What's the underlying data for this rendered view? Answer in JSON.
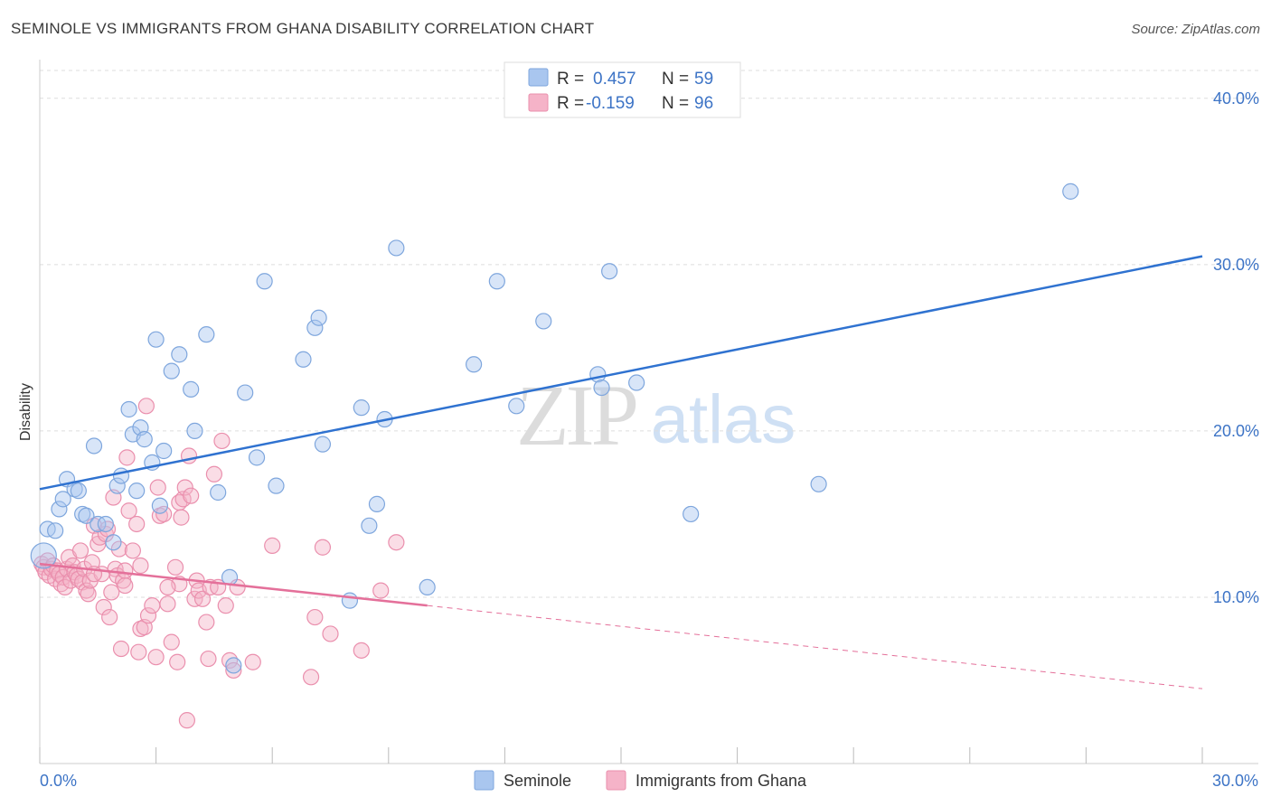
{
  "header": {
    "title": "SEMINOLE VS IMMIGRANTS FROM GHANA DISABILITY CORRELATION CHART",
    "source": "Source: ZipAtlas.com"
  },
  "watermark": {
    "zip": "ZIP",
    "atlas": "atlas"
  },
  "legend_top": {
    "rows": [
      {
        "r_label": "R =",
        "r_value": "0.457",
        "n_label": "N =",
        "n_value": "59",
        "color": "#a9c6ef"
      },
      {
        "r_label": "R =",
        "r_value": "-0.159",
        "n_label": "N =",
        "n_value": "96",
        "color": "#f5b3c8"
      }
    ]
  },
  "legend_bottom": {
    "items": [
      {
        "label": "Seminole",
        "color": "#a9c6ef"
      },
      {
        "label": "Immigrants from Ghana",
        "color": "#f5b3c8"
      }
    ]
  },
  "colors": {
    "blue_line": "#2f72d0",
    "blue_fill": "#a9c6ef",
    "blue_stroke": "#7ea6dd",
    "pink_line": "#e4709a",
    "pink_fill": "#f5b3c8",
    "pink_stroke": "#ea8fad",
    "tick_label": "#3d74c6",
    "grid": "#dddddd"
  },
  "chart_data": {
    "type": "scatter",
    "title": "SEMINOLE VS IMMIGRANTS FROM GHANA DISABILITY CORRELATION CHART",
    "xlabel": "",
    "ylabel": "Disability",
    "xlim": [
      0,
      30
    ],
    "ylim": [
      0,
      42
    ],
    "x_tick_labels": [
      "0.0%",
      "30.0%"
    ],
    "y_ticks": [
      10,
      20,
      30,
      40
    ],
    "y_tick_labels": [
      "10.0%",
      "20.0%",
      "30.0%",
      "40.0%"
    ],
    "grid": "horizontal dashed",
    "legend_position": "top-center",
    "series": [
      {
        "name": "Seminole",
        "r": 0.457,
        "n": 59,
        "trend": {
          "x": [
            0,
            30
          ],
          "y": [
            16.5,
            30.5
          ],
          "style": "solid"
        },
        "points": [
          [
            0.1,
            12.5
          ],
          [
            0.2,
            14.1
          ],
          [
            0.4,
            14.0
          ],
          [
            0.5,
            15.3
          ],
          [
            0.6,
            15.9
          ],
          [
            0.7,
            17.1
          ],
          [
            0.9,
            16.5
          ],
          [
            1.0,
            16.4
          ],
          [
            1.1,
            15.0
          ],
          [
            1.2,
            14.9
          ],
          [
            1.4,
            19.1
          ],
          [
            1.5,
            14.4
          ],
          [
            1.7,
            14.4
          ],
          [
            1.9,
            13.3
          ],
          [
            2.0,
            16.7
          ],
          [
            2.1,
            17.3
          ],
          [
            2.3,
            21.3
          ],
          [
            2.4,
            19.8
          ],
          [
            2.5,
            16.4
          ],
          [
            2.6,
            20.2
          ],
          [
            2.7,
            19.5
          ],
          [
            2.9,
            18.1
          ],
          [
            3.0,
            25.5
          ],
          [
            3.1,
            15.5
          ],
          [
            3.2,
            18.8
          ],
          [
            3.4,
            23.6
          ],
          [
            3.6,
            24.6
          ],
          [
            3.9,
            22.5
          ],
          [
            4.0,
            20.0
          ],
          [
            4.3,
            25.8
          ],
          [
            4.6,
            16.3
          ],
          [
            4.9,
            11.2
          ],
          [
            5.0,
            5.9
          ],
          [
            5.3,
            22.3
          ],
          [
            5.6,
            18.4
          ],
          [
            5.8,
            29.0
          ],
          [
            6.1,
            16.7
          ],
          [
            6.8,
            24.3
          ],
          [
            7.1,
            26.2
          ],
          [
            7.2,
            26.8
          ],
          [
            7.3,
            19.2
          ],
          [
            8.0,
            9.8
          ],
          [
            8.3,
            21.4
          ],
          [
            8.5,
            14.3
          ],
          [
            8.7,
            15.6
          ],
          [
            8.9,
            20.7
          ],
          [
            9.2,
            31.0
          ],
          [
            10.0,
            10.6
          ],
          [
            11.2,
            24.0
          ],
          [
            11.8,
            29.0
          ],
          [
            12.3,
            21.5
          ],
          [
            13.0,
            26.6
          ],
          [
            14.4,
            23.4
          ],
          [
            14.5,
            22.6
          ],
          [
            14.7,
            29.6
          ],
          [
            15.4,
            22.9
          ],
          [
            16.8,
            15.0
          ],
          [
            20.1,
            16.8
          ],
          [
            26.6,
            34.4
          ]
        ]
      },
      {
        "name": "Immigrants from Ghana",
        "r": -0.159,
        "n": 96,
        "trend": {
          "x": [
            0,
            10
          ],
          "y": [
            12.0,
            9.5
          ],
          "style": "solid",
          "extended": {
            "x": [
              10,
              30
            ],
            "y": [
              9.5,
              4.5
            ],
            "style": "dashed"
          }
        },
        "points": [
          [
            0.05,
            12.0
          ],
          [
            0.1,
            11.8
          ],
          [
            0.15,
            11.5
          ],
          [
            0.2,
            12.2
          ],
          [
            0.25,
            11.3
          ],
          [
            0.3,
            11.7
          ],
          [
            0.35,
            11.9
          ],
          [
            0.4,
            11.1
          ],
          [
            0.45,
            11.6
          ],
          [
            0.5,
            11.4
          ],
          [
            0.55,
            10.8
          ],
          [
            0.6,
            11.2
          ],
          [
            0.65,
            10.6
          ],
          [
            0.7,
            11.7
          ],
          [
            0.75,
            12.4
          ],
          [
            0.8,
            11.0
          ],
          [
            0.85,
            11.9
          ],
          [
            0.9,
            11.5
          ],
          [
            0.95,
            11.3
          ],
          [
            1.0,
            11.1
          ],
          [
            1.05,
            12.8
          ],
          [
            1.1,
            10.9
          ],
          [
            1.15,
            11.7
          ],
          [
            1.2,
            10.4
          ],
          [
            1.25,
            10.2
          ],
          [
            1.3,
            11.0
          ],
          [
            1.35,
            12.1
          ],
          [
            1.4,
            14.3
          ],
          [
            1.5,
            13.2
          ],
          [
            1.55,
            13.6
          ],
          [
            1.6,
            11.4
          ],
          [
            1.65,
            9.4
          ],
          [
            1.7,
            13.8
          ],
          [
            1.75,
            14.1
          ],
          [
            1.8,
            8.8
          ],
          [
            1.85,
            10.3
          ],
          [
            1.9,
            16.0
          ],
          [
            1.95,
            11.7
          ],
          [
            2.0,
            11.3
          ],
          [
            2.05,
            12.9
          ],
          [
            2.1,
            6.9
          ],
          [
            2.15,
            11.0
          ],
          [
            2.2,
            10.7
          ],
          [
            2.25,
            18.4
          ],
          [
            2.3,
            15.2
          ],
          [
            2.4,
            12.8
          ],
          [
            2.5,
            14.4
          ],
          [
            2.55,
            6.7
          ],
          [
            2.6,
            8.1
          ],
          [
            2.7,
            8.2
          ],
          [
            2.75,
            21.5
          ],
          [
            2.8,
            8.9
          ],
          [
            2.9,
            9.5
          ],
          [
            3.0,
            6.4
          ],
          [
            3.05,
            16.6
          ],
          [
            3.1,
            14.9
          ],
          [
            3.2,
            15.0
          ],
          [
            3.3,
            9.6
          ],
          [
            3.4,
            7.3
          ],
          [
            3.5,
            11.8
          ],
          [
            3.55,
            6.1
          ],
          [
            3.6,
            15.7
          ],
          [
            3.65,
            14.8
          ],
          [
            3.7,
            15.9
          ],
          [
            3.75,
            16.6
          ],
          [
            3.8,
            2.6
          ],
          [
            3.85,
            18.5
          ],
          [
            3.9,
            16.1
          ],
          [
            4.0,
            9.9
          ],
          [
            4.05,
            11.0
          ],
          [
            4.1,
            10.4
          ],
          [
            4.2,
            9.9
          ],
          [
            4.3,
            8.5
          ],
          [
            4.35,
            6.3
          ],
          [
            4.4,
            10.6
          ],
          [
            4.5,
            17.4
          ],
          [
            4.6,
            10.6
          ],
          [
            4.7,
            19.4
          ],
          [
            4.8,
            9.5
          ],
          [
            4.9,
            6.2
          ],
          [
            5.0,
            5.6
          ],
          [
            5.1,
            10.6
          ],
          [
            5.5,
            6.1
          ],
          [
            6.0,
            13.1
          ],
          [
            7.0,
            5.2
          ],
          [
            7.1,
            8.8
          ],
          [
            7.3,
            13.0
          ],
          [
            7.5,
            7.8
          ],
          [
            8.3,
            6.8
          ],
          [
            8.8,
            10.4
          ],
          [
            9.2,
            13.3
          ],
          [
            3.6,
            10.8
          ],
          [
            3.3,
            10.6
          ],
          [
            2.6,
            11.9
          ],
          [
            2.2,
            11.6
          ],
          [
            1.4,
            11.4
          ]
        ]
      }
    ]
  }
}
